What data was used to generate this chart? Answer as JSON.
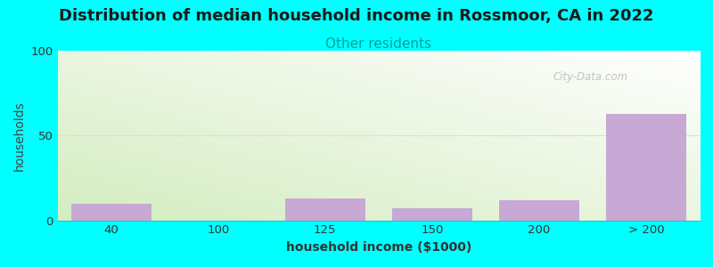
{
  "title": "Distribution of median household income in Rossmoor, CA in 2022",
  "subtitle": "Other residents",
  "xlabel": "household income ($1000)",
  "ylabel": "households",
  "background_color": "#00ffff",
  "bar_color": "#c8a8d4",
  "categories": [
    "40",
    "100",
    "125",
    "150",
    "200",
    "> 200"
  ],
  "values": [
    10,
    0,
    13,
    7,
    12,
    63
  ],
  "ylim": [
    0,
    100
  ],
  "yticks": [
    0,
    50,
    100
  ],
  "title_fontsize": 13,
  "subtitle_fontsize": 11,
  "subtitle_color": "#00a0a0",
  "axis_label_fontsize": 10,
  "watermark": "City-Data.com",
  "bar_width": 0.75
}
